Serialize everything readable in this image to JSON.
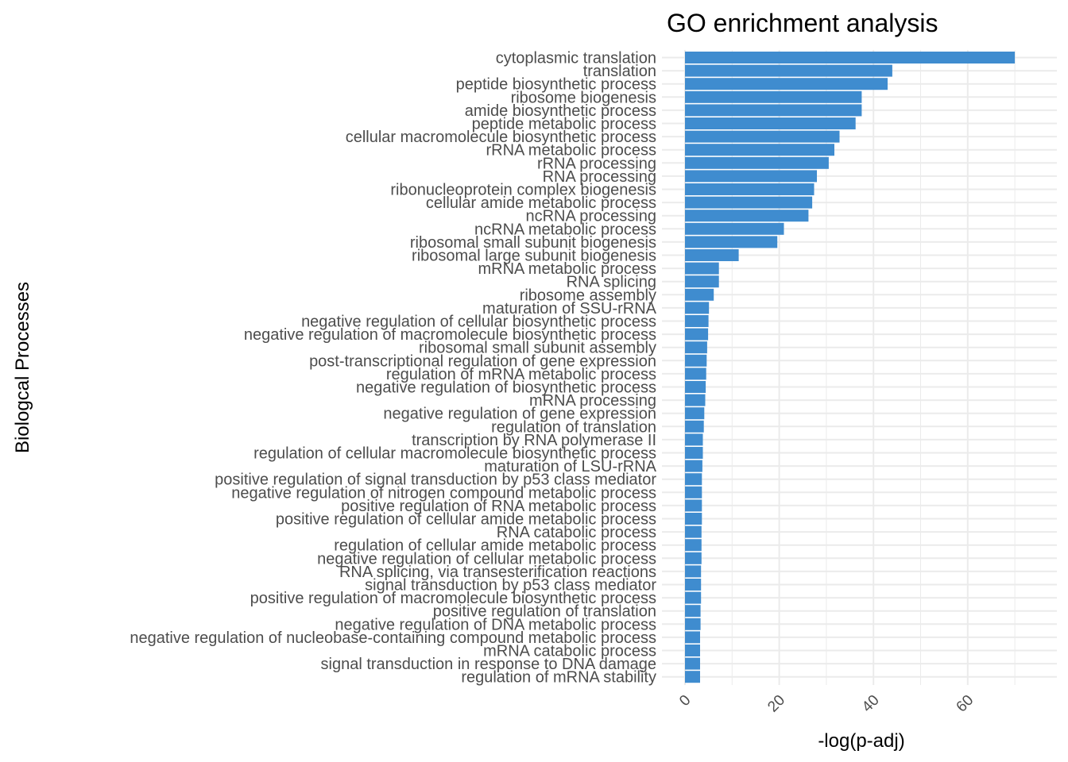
{
  "chart_data": {
    "type": "bar",
    "orientation": "horizontal",
    "title": "GO enrichment analysis",
    "xlabel": "-log(p-adj)",
    "ylabel": "Biologcal Processes",
    "xlim": [
      0,
      73
    ],
    "xticks": [
      "0",
      "20",
      "40",
      "60"
    ],
    "bar_color": "#3f8ccf",
    "grid": true,
    "categories": [
      "cytoplasmic translation",
      "translation",
      "peptide biosynthetic process",
      "ribosome biogenesis",
      "amide biosynthetic process",
      "peptide metabolic process",
      "cellular macromolecule biosynthetic process",
      "rRNA metabolic process",
      "rRNA processing",
      "RNA processing",
      "ribonucleoprotein complex biogenesis",
      "cellular amide metabolic process",
      "ncRNA processing",
      "ncRNA metabolic process",
      "ribosomal small subunit biogenesis",
      "ribosomal large subunit biogenesis",
      "mRNA metabolic process",
      "RNA splicing",
      "ribosome assembly",
      "maturation of SSU-rRNA",
      "negative regulation of cellular biosynthetic process",
      "negative regulation of macromolecule biosynthetic process",
      "ribosomal small subunit assembly",
      "post-transcriptional regulation of gene expression",
      "regulation of mRNA metabolic process",
      "negative regulation of biosynthetic process",
      "mRNA processing",
      "negative regulation of gene expression",
      "regulation of translation",
      "transcription by RNA polymerase II",
      "regulation of cellular macromolecule biosynthetic process",
      "maturation of LSU-rRNA",
      "positive regulation of signal transduction by p53 class mediator",
      "negative regulation of nitrogen compound metabolic process",
      "positive regulation of RNA metabolic process",
      "positive regulation of cellular amide metabolic process",
      "RNA catabolic process",
      "regulation of cellular amide metabolic process",
      "negative regulation of cellular metabolic process",
      "RNA splicing, via transesterification reactions",
      "signal transduction by p53 class mediator",
      "positive regulation of macromolecule biosynthetic process",
      "positive regulation of translation",
      "negative regulation of DNA metabolic process",
      "negative regulation of nucleobase-containing compound metabolic process",
      "mRNA catabolic process",
      "signal transduction in response to DNA damage",
      "regulation of mRNA stability"
    ],
    "values": [
      70.0,
      44.0,
      43.0,
      37.5,
      37.5,
      36.2,
      32.8,
      31.7,
      30.5,
      28.0,
      27.4,
      27.0,
      26.2,
      21.0,
      19.6,
      11.4,
      7.2,
      7.2,
      6.1,
      5.1,
      5.0,
      4.9,
      4.7,
      4.6,
      4.5,
      4.4,
      4.3,
      4.1,
      4.0,
      3.8,
      3.8,
      3.7,
      3.6,
      3.6,
      3.6,
      3.6,
      3.5,
      3.5,
      3.5,
      3.4,
      3.4,
      3.4,
      3.3,
      3.3,
      3.2,
      3.2,
      3.2,
      3.2
    ]
  }
}
